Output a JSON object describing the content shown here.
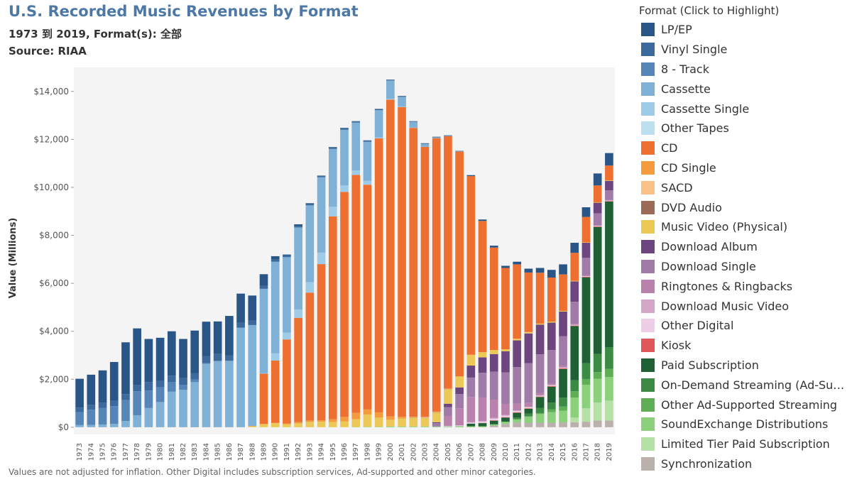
{
  "title": "U.S. Recorded Music Revenues by Format",
  "subtitle": "1973 到 2019, Format(s): 全部",
  "source": "Source: RIAA",
  "legend_title": "Format (Click to Highlight)",
  "chart_data": {
    "type": "bar",
    "stacked": true,
    "ylabel": "Value (Millions)",
    "xlabel": "",
    "ylim": [
      -300,
      15000
    ],
    "y_ticks": [
      {
        "value": 0,
        "label": "$0"
      },
      {
        "value": 2000,
        "label": "$2,000"
      },
      {
        "value": 4000,
        "label": "$4,000"
      },
      {
        "value": 6000,
        "label": "$6,000"
      },
      {
        "value": 8000,
        "label": "$8,000"
      },
      {
        "value": 10000,
        "label": "$10,000"
      },
      {
        "value": 12000,
        "label": "$12,000"
      },
      {
        "value": 14000,
        "label": "$14,000"
      }
    ],
    "categories": [
      "1973",
      "1974",
      "1975",
      "1976",
      "1977",
      "1978",
      "1979",
      "1980",
      "1981",
      "1982",
      "1983",
      "1984",
      "1985",
      "1986",
      "1987",
      "1988",
      "1989",
      "1990",
      "1991",
      "1992",
      "1993",
      "1994",
      "1995",
      "1996",
      "1997",
      "1998",
      "1999",
      "2000",
      "2001",
      "2002",
      "2003",
      "2004",
      "2005",
      "2006",
      "2007",
      "2008",
      "2009",
      "2010",
      "2011",
      "2012",
      "2013",
      "2014",
      "2015",
      "2016",
      "2017",
      "2018",
      "2019"
    ],
    "grid": false,
    "legend_position": "right",
    "series": [
      {
        "name": "Synchronization",
        "color": "#bab0ac",
        "values": [
          0,
          0,
          0,
          0,
          0,
          0,
          0,
          0,
          0,
          0,
          0,
          0,
          0,
          0,
          0,
          0,
          0,
          0,
          0,
          0,
          0,
          0,
          0,
          0,
          0,
          0,
          0,
          0,
          0,
          0,
          0,
          0,
          0,
          0,
          0,
          0,
          70,
          140,
          200,
          190,
          190,
          190,
          200,
          210,
          230,
          280,
          280
        ]
      },
      {
        "name": "Limited Tier Paid Subscription",
        "color": "#b5e0a6",
        "values": [
          0,
          0,
          0,
          0,
          0,
          0,
          0,
          0,
          0,
          0,
          0,
          0,
          0,
          0,
          0,
          0,
          0,
          0,
          0,
          0,
          0,
          0,
          0,
          0,
          0,
          0,
          0,
          0,
          0,
          0,
          0,
          0,
          0,
          0,
          0,
          0,
          0,
          0,
          0,
          0,
          0,
          0,
          0,
          190,
          560,
          750,
          830
        ]
      },
      {
        "name": "SoundExchange Distributions",
        "color": "#8bd07a",
        "values": [
          0,
          0,
          0,
          0,
          0,
          0,
          0,
          0,
          0,
          0,
          0,
          0,
          0,
          0,
          0,
          0,
          0,
          0,
          0,
          0,
          0,
          0,
          0,
          0,
          10,
          20,
          20,
          30,
          30,
          30,
          30,
          30,
          30,
          40,
          40,
          40,
          50,
          90,
          130,
          240,
          360,
          440,
          490,
          840,
          980,
          990,
          980
        ]
      },
      {
        "name": "Other Ad-Supported Streaming",
        "color": "#5fae56",
        "values": [
          0,
          0,
          0,
          0,
          0,
          0,
          0,
          0,
          0,
          0,
          0,
          0,
          0,
          0,
          0,
          0,
          0,
          0,
          0,
          0,
          0,
          0,
          0,
          0,
          0,
          0,
          0,
          0,
          0,
          0,
          0,
          0,
          0,
          0,
          0,
          0,
          0,
          0,
          0,
          30,
          40,
          120,
          170,
          260,
          240,
          280,
          340
        ]
      },
      {
        "name": "On-Demand Streaming (Ad-Supported)",
        "color": "#3b8b45",
        "values": [
          0,
          0,
          0,
          0,
          0,
          0,
          0,
          0,
          0,
          0,
          0,
          0,
          0,
          0,
          0,
          0,
          0,
          0,
          0,
          0,
          0,
          0,
          0,
          0,
          0,
          0,
          0,
          0,
          0,
          0,
          0,
          0,
          0,
          0,
          0,
          0,
          0,
          0,
          70,
          110,
          220,
          280,
          370,
          460,
          660,
          750,
          910
        ]
      },
      {
        "name": "Paid Subscription",
        "color": "#1f6134",
        "values": [
          0,
          0,
          0,
          0,
          0,
          0,
          0,
          0,
          0,
          0,
          0,
          0,
          0,
          0,
          0,
          0,
          0,
          0,
          0,
          0,
          0,
          0,
          0,
          0,
          0,
          0,
          0,
          0,
          0,
          0,
          0,
          0,
          0,
          0,
          110,
          130,
          150,
          170,
          200,
          200,
          450,
          660,
          1200,
          2260,
          3580,
          5300,
          6070
        ]
      },
      {
        "name": "Kiosk",
        "color": "#e15759",
        "values": [
          0,
          0,
          0,
          0,
          0,
          0,
          0,
          0,
          0,
          0,
          0,
          0,
          0,
          0,
          0,
          0,
          0,
          0,
          0,
          0,
          0,
          0,
          0,
          0,
          0,
          0,
          0,
          0,
          0,
          0,
          0,
          0,
          0,
          0,
          0,
          10,
          20,
          20,
          20,
          20,
          20,
          30,
          30,
          20,
          20,
          20,
          20
        ]
      },
      {
        "name": "Other Digital",
        "color": "#eecde6",
        "values": [
          0,
          0,
          0,
          0,
          0,
          0,
          0,
          0,
          0,
          0,
          0,
          0,
          0,
          0,
          0,
          0,
          0,
          0,
          0,
          0,
          0,
          0,
          0,
          0,
          0,
          0,
          0,
          0,
          0,
          0,
          0,
          0,
          20,
          30,
          40,
          50,
          60,
          60,
          50,
          40,
          30,
          30,
          20,
          20,
          20,
          20,
          20
        ]
      },
      {
        "name": "Download Music Video",
        "color": "#d4a6c8",
        "values": [
          0,
          0,
          0,
          0,
          0,
          0,
          0,
          0,
          0,
          0,
          0,
          0,
          0,
          0,
          0,
          0,
          0,
          0,
          0,
          0,
          0,
          0,
          0,
          0,
          0,
          0,
          0,
          0,
          0,
          0,
          0,
          0,
          0,
          10,
          20,
          30,
          40,
          30,
          30,
          20,
          20,
          10,
          10,
          10,
          10,
          10,
          0
        ]
      },
      {
        "name": "Ringtones & Ringbacks",
        "color": "#b982ad",
        "values": [
          0,
          0,
          0,
          0,
          0,
          0,
          0,
          0,
          0,
          0,
          0,
          0,
          0,
          0,
          0,
          0,
          0,
          0,
          0,
          0,
          0,
          0,
          0,
          0,
          0,
          0,
          0,
          0,
          0,
          0,
          0,
          0,
          420,
          710,
          1050,
          980,
          760,
          450,
          280,
          170,
          100,
          70,
          60,
          40,
          30,
          20,
          20
        ]
      },
      {
        "name": "Download Single",
        "color": "#a07ba8",
        "values": [
          0,
          0,
          0,
          0,
          0,
          0,
          0,
          0,
          0,
          0,
          0,
          0,
          0,
          0,
          0,
          0,
          0,
          0,
          0,
          0,
          0,
          0,
          0,
          0,
          0,
          0,
          0,
          0,
          0,
          0,
          0,
          140,
          370,
          590,
          810,
          1030,
          1170,
          1330,
          1530,
          1650,
          1610,
          1390,
          1240,
          920,
          730,
          500,
          410
        ]
      },
      {
        "name": "Download Album",
        "color": "#6d4680",
        "values": [
          0,
          0,
          0,
          0,
          0,
          0,
          0,
          0,
          0,
          0,
          0,
          0,
          0,
          0,
          0,
          0,
          0,
          0,
          0,
          0,
          0,
          0,
          0,
          0,
          0,
          0,
          0,
          0,
          0,
          0,
          0,
          40,
          140,
          280,
          500,
          640,
          730,
          880,
          1110,
          1240,
          1240,
          1140,
          1030,
          850,
          630,
          440,
          390
        ]
      },
      {
        "name": "Music Video (Physical)",
        "color": "#ecc957",
        "values": [
          0,
          0,
          0,
          0,
          0,
          0,
          0,
          0,
          0,
          0,
          0,
          0,
          0,
          0,
          0,
          40,
          120,
          170,
          120,
          160,
          220,
          230,
          220,
          240,
          320,
          510,
          380,
          280,
          330,
          370,
          360,
          400,
          600,
          450,
          450,
          220,
          170,
          80,
          70,
          60,
          40,
          40,
          30,
          20,
          20,
          20,
          20
        ]
      },
      {
        "name": "DVD Audio",
        "color": "#9b6b57",
        "values": [
          0,
          0,
          0,
          0,
          0,
          0,
          0,
          0,
          0,
          0,
          0,
          0,
          0,
          0,
          0,
          0,
          0,
          0,
          0,
          0,
          0,
          0,
          0,
          0,
          0,
          0,
          0,
          0,
          0,
          10,
          10,
          10,
          10,
          0,
          0,
          0,
          0,
          0,
          0,
          0,
          0,
          0,
          0,
          0,
          0,
          0,
          0
        ]
      },
      {
        "name": "SACD",
        "color": "#fbc087",
        "values": [
          0,
          0,
          0,
          0,
          0,
          0,
          0,
          0,
          0,
          0,
          0,
          0,
          0,
          0,
          0,
          0,
          0,
          0,
          0,
          0,
          0,
          0,
          0,
          0,
          0,
          0,
          0,
          0,
          0,
          10,
          20,
          10,
          10,
          0,
          0,
          0,
          0,
          0,
          0,
          0,
          0,
          0,
          0,
          0,
          0,
          0,
          0
        ]
      },
      {
        "name": "CD Single",
        "color": "#f39b3d",
        "values": [
          0,
          0,
          0,
          0,
          0,
          0,
          0,
          0,
          0,
          0,
          0,
          0,
          0,
          0,
          0,
          0,
          20,
          10,
          40,
          50,
          60,
          60,
          110,
          190,
          270,
          210,
          220,
          140,
          80,
          20,
          10,
          20,
          10,
          10,
          0,
          0,
          0,
          0,
          0,
          0,
          0,
          0,
          0,
          0,
          0,
          0,
          0
        ]
      },
      {
        "name": "CD",
        "color": "#ed7030",
        "values": [
          0,
          0,
          0,
          0,
          0,
          0,
          0,
          0,
          0,
          0,
          0,
          0,
          0,
          0,
          0,
          10,
          2090,
          2600,
          3500,
          4350,
          5330,
          6510,
          8460,
          9380,
          9920,
          9370,
          11420,
          13210,
          12910,
          12040,
          11260,
          11400,
          10520,
          9370,
          7450,
          5470,
          4270,
          3390,
          3100,
          2480,
          2120,
          1840,
          1520,
          1170,
          1060,
          700,
          620
        ]
      },
      {
        "name": "Other Tapes",
        "color": "#bde0f0",
        "values": [
          0,
          0,
          0,
          0,
          0,
          0,
          0,
          0,
          0,
          0,
          0,
          0,
          0,
          0,
          0,
          0,
          0,
          0,
          0,
          0,
          0,
          0,
          0,
          0,
          0,
          0,
          0,
          0,
          0,
          0,
          0,
          0,
          0,
          0,
          0,
          0,
          0,
          0,
          0,
          0,
          0,
          0,
          0,
          0,
          0,
          0,
          0
        ]
      },
      {
        "name": "Cassette Single",
        "color": "#9dcbe8",
        "values": [
          0,
          0,
          0,
          0,
          0,
          0,
          0,
          0,
          0,
          0,
          0,
          0,
          0,
          0,
          0,
          0,
          20,
          300,
          280,
          350,
          440,
          480,
          400,
          270,
          180,
          160,
          40,
          30,
          20,
          10,
          0,
          0,
          0,
          0,
          0,
          0,
          0,
          0,
          0,
          0,
          0,
          0,
          0,
          0,
          0,
          0,
          0
        ]
      },
      {
        "name": "Cassette",
        "color": "#7fb0d6",
        "values": [
          90,
          100,
          110,
          140,
          260,
          500,
          800,
          1050,
          1480,
          1560,
          1880,
          2640,
          2750,
          2760,
          4150,
          4210,
          3520,
          3820,
          3150,
          3420,
          3200,
          3140,
          2410,
          2320,
          2000,
          1630,
          1140,
          760,
          400,
          240,
          120,
          30,
          10,
          10,
          0,
          0,
          0,
          0,
          0,
          0,
          0,
          0,
          0,
          0,
          0,
          0,
          0
        ]
      },
      {
        "name": "8 - Track",
        "color": "#5586b7",
        "values": [
          540,
          630,
          700,
          740,
          870,
          1000,
          730,
          610,
          410,
          210,
          110,
          30,
          20,
          10,
          0,
          0,
          0,
          0,
          0,
          0,
          0,
          0,
          0,
          0,
          0,
          0,
          0,
          0,
          0,
          0,
          0,
          0,
          0,
          0,
          0,
          0,
          0,
          0,
          0,
          0,
          0,
          0,
          0,
          0,
          0,
          0,
          0
        ]
      },
      {
        "name": "Vinyl Single",
        "color": "#3c6a9e",
        "values": [
          190,
          190,
          210,
          240,
          250,
          260,
          350,
          270,
          260,
          280,
          270,
          300,
          280,
          230,
          200,
          180,
          120,
          90,
          70,
          50,
          50,
          50,
          50,
          50,
          40,
          30,
          20,
          10,
          10,
          10,
          10,
          10,
          10,
          0,
          0,
          0,
          0,
          0,
          0,
          0,
          0,
          0,
          0,
          0,
          0,
          0,
          0
        ]
      },
      {
        "name": "LP/EP",
        "color": "#295687",
        "values": [
          1200,
          1270,
          1350,
          1600,
          2160,
          2360,
          1800,
          1800,
          1850,
          1630,
          1770,
          1430,
          1360,
          1640,
          1220,
          1050,
          490,
          140,
          40,
          80,
          40,
          20,
          30,
          30,
          20,
          30,
          30,
          30,
          30,
          20,
          20,
          20,
          20,
          20,
          40,
          60,
          80,
          90,
          110,
          160,
          200,
          320,
          420,
          420,
          400,
          500,
          520
        ]
      }
    ]
  },
  "footnote": "Values are not adjusted for inflation. Other Digital includes subscription services, Ad-supported and other minor categories."
}
